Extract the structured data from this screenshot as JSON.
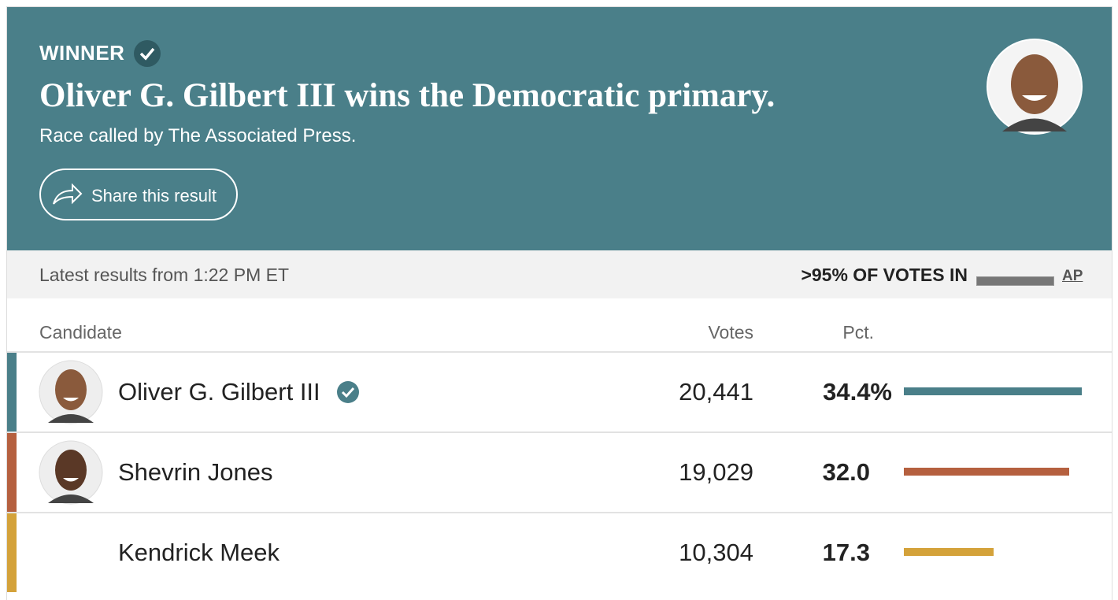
{
  "header": {
    "label": "WINNER",
    "title": "Oliver G. Gilbert III wins the Democratic primary.",
    "subtitle": "Race called by The Associated Press.",
    "share": "Share this result"
  },
  "status": {
    "latest": "Latest results from 1:22 PM ET",
    "votes_in": ">95% OF VOTES IN",
    "source": "AP"
  },
  "table": {
    "columns": [
      "Candidate",
      "Votes",
      "Pct."
    ],
    "rows": [
      {
        "name": "Oliver G. Gilbert III",
        "votes": "20,441",
        "pct": 34.4,
        "pct_label": "34.4%",
        "color": "#4a7f89",
        "winner": true,
        "photo": true
      },
      {
        "name": "Shevrin Jones",
        "votes": "19,029",
        "pct": 32.0,
        "pct_label": "32.0",
        "color": "#b5603f",
        "winner": false,
        "photo": true
      },
      {
        "name": "Kendrick Meek",
        "votes": "10,304",
        "pct": 17.3,
        "pct_label": "17.3",
        "color": "#d4a23a",
        "winner": false,
        "photo": false
      }
    ]
  }
}
